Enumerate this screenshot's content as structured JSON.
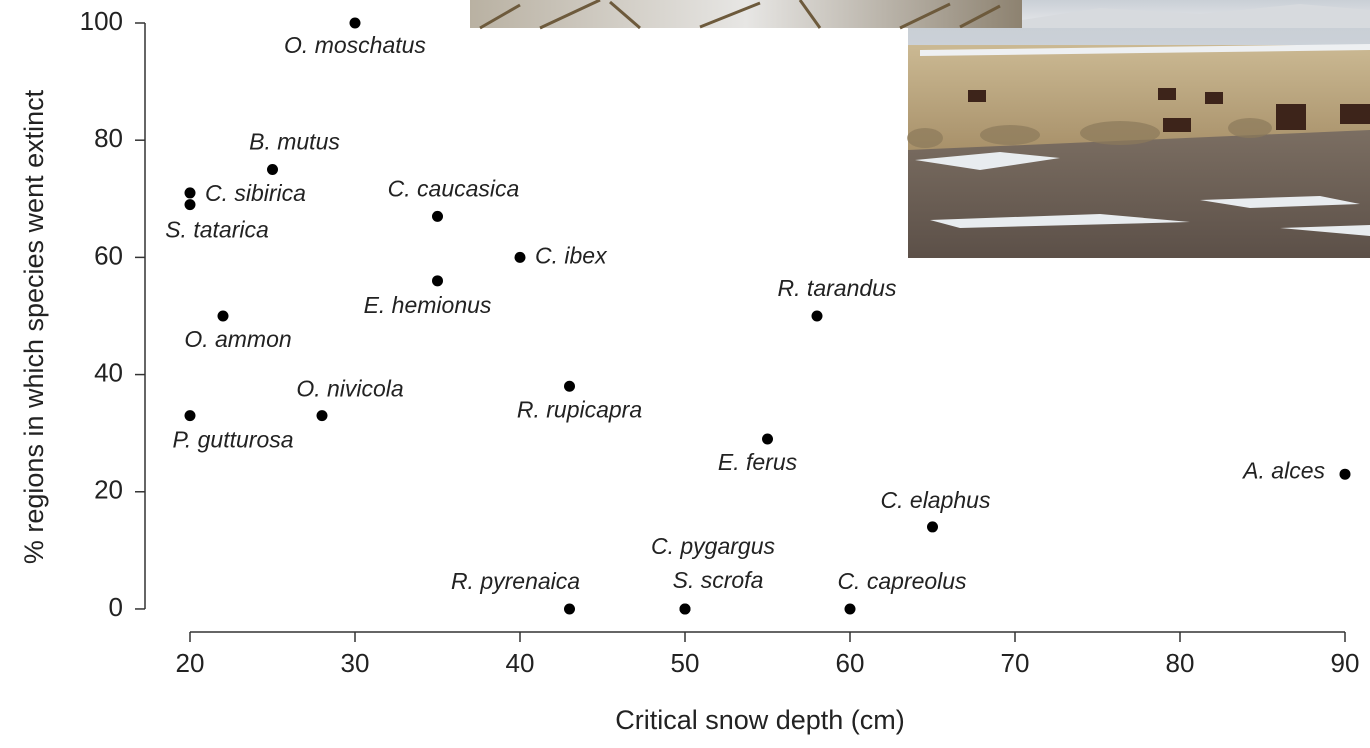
{
  "chart_data": {
    "type": "scatter",
    "xlabel": "Critical snow depth (cm)",
    "ylabel": "% regions in which species went extinct",
    "labels": [
      "O. moschatus",
      "B. mutus",
      "C. sibirica",
      "S. tatarica",
      "C. caucasica",
      "C. ibex",
      "E. hemionus",
      "O. ammon",
      "R. tarandus",
      "R. rupicapra",
      "O. nivicola",
      "P. gutturosa",
      "E. ferus",
      "A. alces",
      "C. elaphus",
      "R. pyrenaica",
      "C. pygargus",
      "S. scrofa",
      "C. capreolus"
    ],
    "x": [
      30,
      25,
      20,
      20,
      35,
      40,
      35,
      22,
      58,
      43,
      28,
      20,
      55,
      90,
      65,
      43,
      50,
      50,
      60
    ],
    "values": [
      100,
      75,
      71,
      69,
      67,
      60,
      56,
      50,
      50,
      38,
      33,
      33,
      29,
      23,
      14,
      0,
      0,
      0,
      0
    ],
    "color": "#000000",
    "xlim": [
      17.3,
      91
    ],
    "ylim": [
      -4,
      100
    ],
    "xticks": [
      20,
      30,
      40,
      50,
      60,
      70,
      80,
      90
    ],
    "yticks": [
      0,
      20,
      40,
      60,
      80,
      100
    ]
  }
}
